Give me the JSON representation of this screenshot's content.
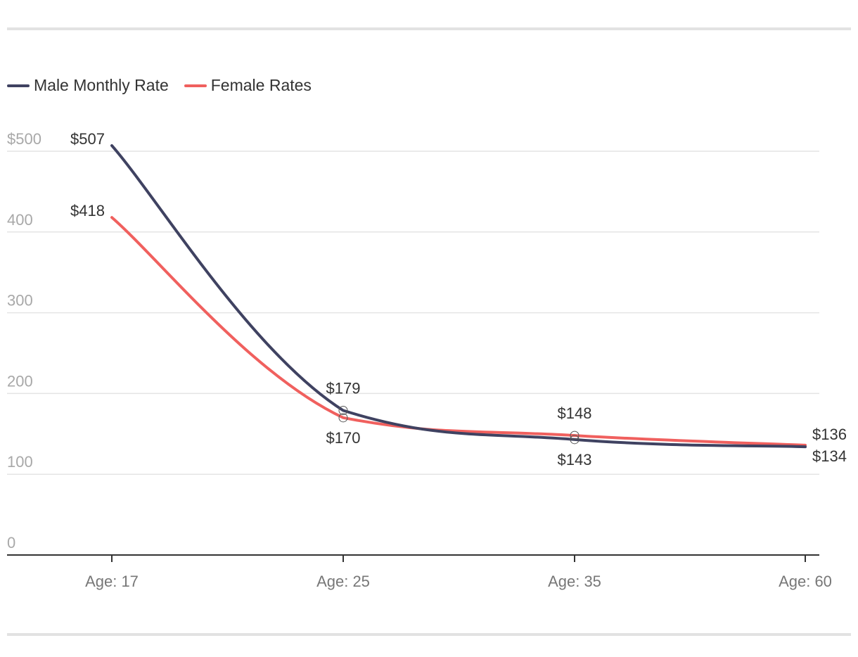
{
  "chart_data": {
    "type": "line",
    "categories": [
      "Age: 17",
      "Age: 25",
      "Age: 35",
      "Age: 60"
    ],
    "ylim": [
      0,
      500
    ],
    "yticks": [
      0,
      100,
      200,
      300,
      400,
      500
    ],
    "ytick_labels": [
      "0",
      "100",
      "200",
      "300",
      "400",
      "$500"
    ],
    "grid": true,
    "legend_position": "top-left",
    "series": [
      {
        "name": "Male Monthly Rate",
        "color": "#3f4261",
        "values": [
          507,
          179,
          143,
          134
        ],
        "labels": [
          "$507",
          "$179",
          "$143",
          "$134"
        ]
      },
      {
        "name": "Female Rates",
        "color": "#f0605e",
        "values": [
          418,
          170,
          148,
          136
        ],
        "labels": [
          "$418",
          "$170",
          "$148",
          "$136"
        ]
      }
    ]
  }
}
